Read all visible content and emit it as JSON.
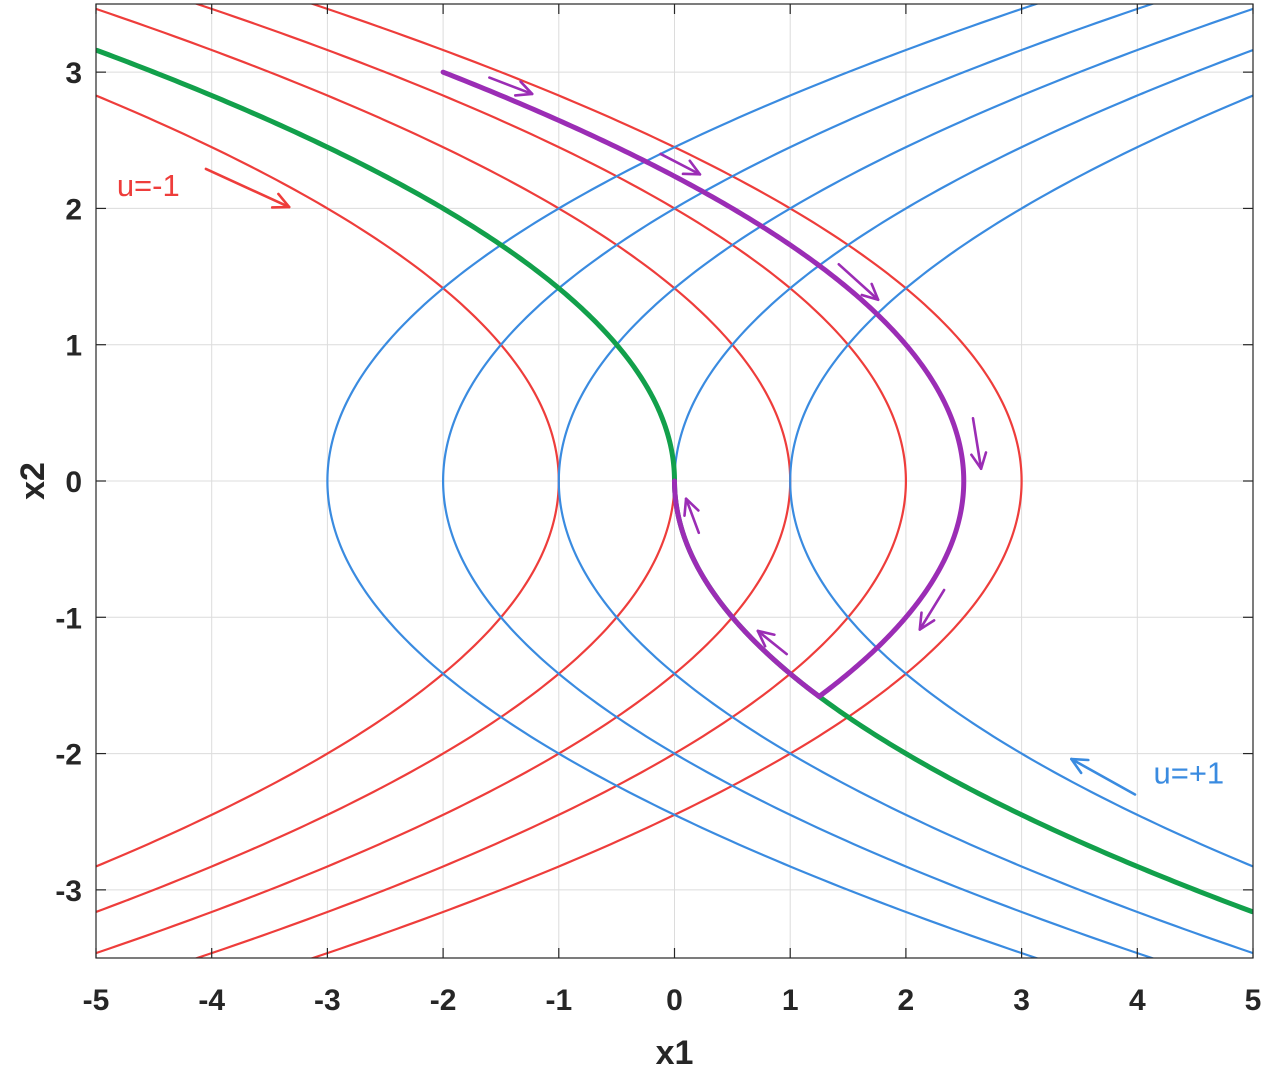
{
  "chart_data": {
    "type": "line",
    "title": "",
    "xlabel": "x1",
    "ylabel": "x2",
    "xlim": [
      -5,
      5
    ],
    "ylim": [
      -3.5,
      3.5
    ],
    "xticks": [
      -5,
      -4,
      -3,
      -2,
      -1,
      0,
      1,
      2,
      3,
      4,
      5
    ],
    "yticks": [
      -3,
      -2,
      -1,
      0,
      1,
      2,
      3
    ],
    "grid": true,
    "colors": {
      "u_plus": "#3a8be0",
      "u_minus": "#ee3d3b",
      "switching": "#12a04b",
      "trajectory": "#9b2db5"
    },
    "series": [
      {
        "family": "u_plus",
        "equation": "x1 = c + x2^2/2",
        "vertex_x1": [
          -3,
          -2,
          -1,
          0,
          1
        ]
      },
      {
        "family": "u_minus",
        "equation": "x1 = c - x2^2/2",
        "vertex_x1": [
          -1,
          0,
          1,
          2,
          3
        ]
      },
      {
        "family": "switching",
        "equation": "x1 = -x2|x2|/2",
        "x2_range": [
          -3.16,
          3.16
        ]
      },
      {
        "family": "trajectory",
        "start": [
          -2,
          3
        ],
        "switch_point": [
          1.25,
          -1.58
        ],
        "end": [
          0,
          0
        ]
      }
    ],
    "annotations": [
      {
        "text": "u=-1",
        "color": "u_minus"
      },
      {
        "text": "u=+1",
        "color": "u_plus"
      }
    ]
  }
}
